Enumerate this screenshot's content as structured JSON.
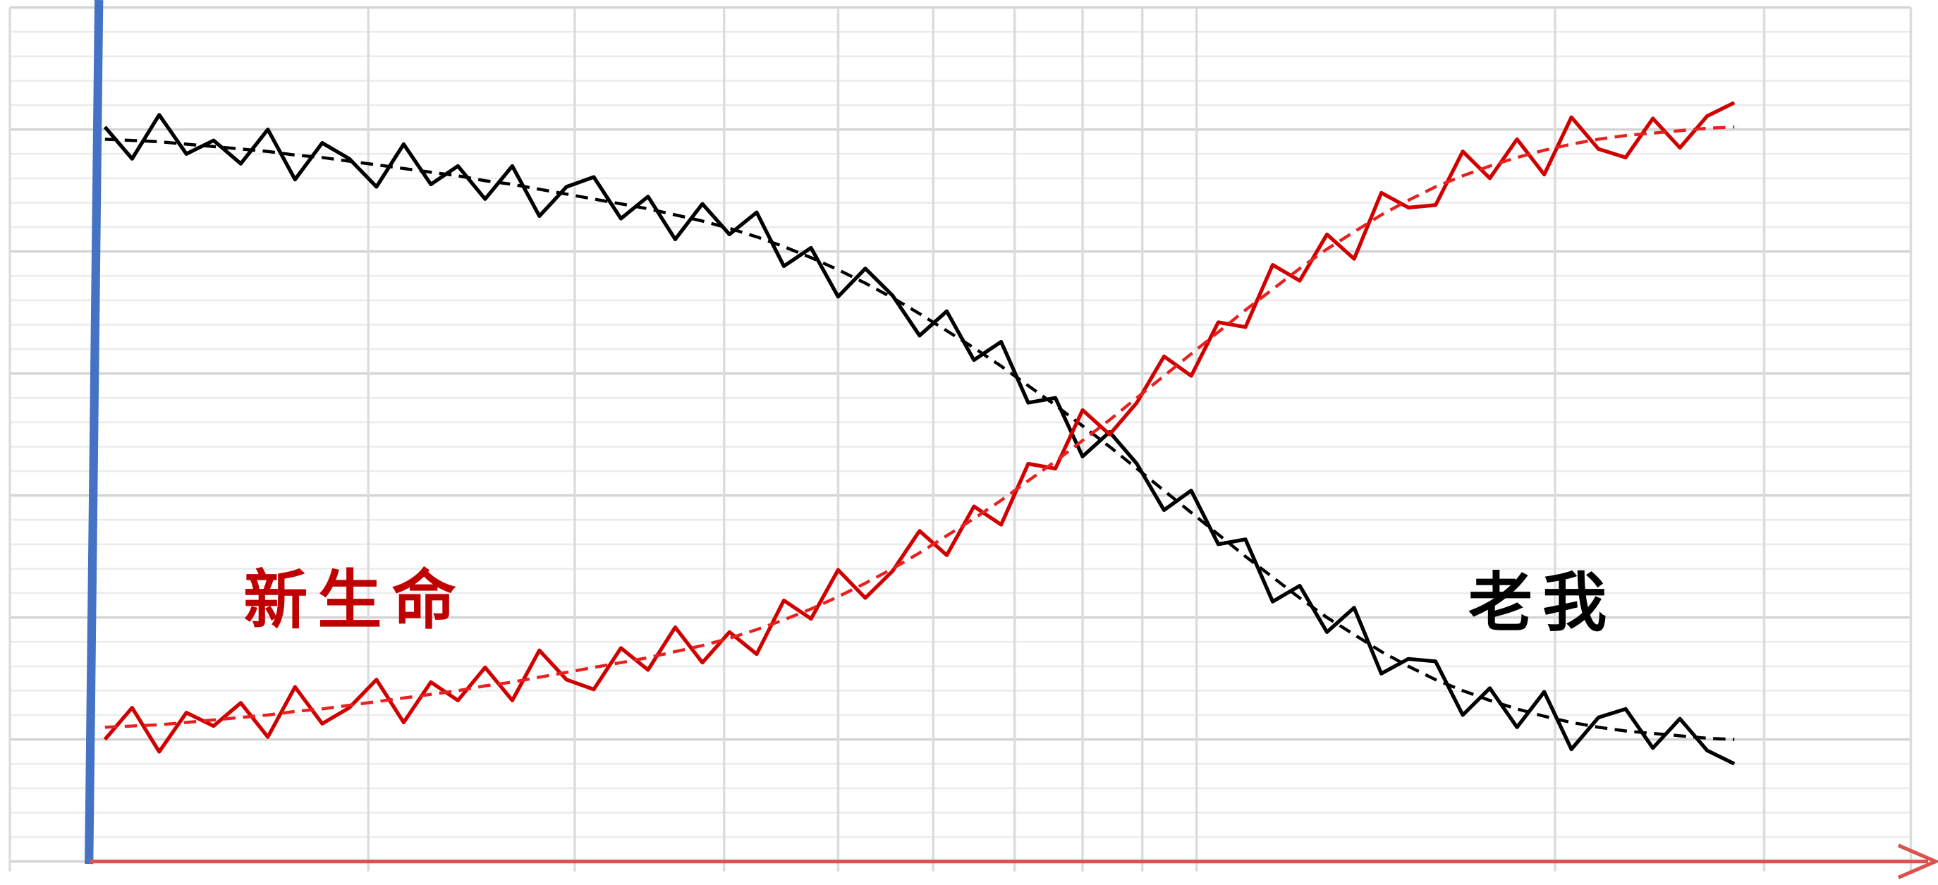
{
  "chart_data": {
    "type": "line",
    "xlim": [
      0,
      70
    ],
    "xticks": [
      0,
      13.2,
      20.8,
      26.3,
      30.5,
      34,
      37,
      39.5,
      41.7,
      43.7,
      56.9,
      64.6,
      70
    ],
    "ylim": [
      0,
      7
    ],
    "yticks": [
      0,
      1,
      2,
      3,
      4,
      5,
      6,
      7
    ],
    "minor_yticks": [
      0.2,
      0.4,
      0.6,
      0.8,
      1.2,
      1.4,
      1.6,
      1.8,
      2.2,
      2.4,
      2.6,
      2.8,
      3.2,
      3.4,
      3.6,
      3.8,
      4.2,
      4.4,
      4.6,
      4.8,
      5.2,
      5.4,
      5.6,
      5.8,
      6.2,
      6.4,
      6.6,
      6.8
    ],
    "grid": true,
    "x": [
      3.5,
      4.5,
      5.5,
      6.5,
      7.5,
      8.5,
      9.5,
      10.5,
      11.5,
      12.5,
      13.5,
      14.5,
      15.5,
      16.5,
      17.5,
      18.5,
      19.5,
      20.5,
      21.5,
      22.5,
      23.5,
      24.5,
      25.5,
      26.5,
      27.5,
      28.5,
      29.5,
      30.5,
      31.5,
      32.5,
      33.5,
      34.5,
      35.5,
      36.5,
      37.5,
      38.5,
      39.5,
      40.5,
      41.5,
      42.5,
      43.5,
      44.5,
      45.5,
      46.5,
      47.5,
      48.5,
      49.5,
      50.5,
      51.5,
      52.5,
      53.5,
      54.5,
      55.5,
      56.5,
      57.5,
      58.5,
      59.5,
      60.5,
      61.5,
      62.5,
      63.5
    ],
    "series": [
      {
        "color": "#000000",
        "dashed": false,
        "values": [
          6.02,
          5.76,
          6.12,
          5.8,
          5.91,
          5.72,
          6.0,
          5.59,
          5.89,
          5.76,
          5.53,
          5.88,
          5.55,
          5.7,
          5.43,
          5.7,
          5.29,
          5.53,
          5.61,
          5.27,
          5.45,
          5.1,
          5.39,
          5.14,
          5.32,
          4.88,
          5.03,
          4.63,
          4.86,
          4.64,
          4.31,
          4.51,
          4.11,
          4.26,
          3.76,
          3.8,
          3.32,
          3.52,
          3.26,
          2.88,
          3.04,
          2.6,
          2.64,
          2.13,
          2.26,
          1.88,
          2.08,
          1.54,
          1.66,
          1.64,
          1.2,
          1.42,
          1.1,
          1.39,
          0.92,
          1.18,
          1.25,
          0.93,
          1.17,
          0.91,
          0.8
        ]
      },
      {
        "color": "#000000",
        "dashed": true,
        "values": [
          5.92,
          5.91,
          5.9,
          5.88,
          5.86,
          5.84,
          5.82,
          5.79,
          5.77,
          5.74,
          5.71,
          5.68,
          5.65,
          5.62,
          5.58,
          5.55,
          5.51,
          5.47,
          5.43,
          5.39,
          5.35,
          5.3,
          5.25,
          5.19,
          5.12,
          5.04,
          4.95,
          4.85,
          4.74,
          4.62,
          4.49,
          4.35,
          4.21,
          4.06,
          3.9,
          3.74,
          3.57,
          3.4,
          3.22,
          3.04,
          2.86,
          2.68,
          2.5,
          2.33,
          2.16,
          2.0,
          1.86,
          1.72,
          1.6,
          1.49,
          1.4,
          1.32,
          1.25,
          1.19,
          1.14,
          1.1,
          1.07,
          1.05,
          1.03,
          1.01,
          1.0
        ]
      },
      {
        "color": "#d00000",
        "dashed": false,
        "values": [
          1.0,
          1.26,
          0.9,
          1.22,
          1.11,
          1.3,
          1.02,
          1.43,
          1.13,
          1.26,
          1.49,
          1.14,
          1.47,
          1.32,
          1.59,
          1.32,
          1.73,
          1.49,
          1.41,
          1.75,
          1.57,
          1.92,
          1.63,
          1.88,
          1.7,
          2.14,
          1.99,
          2.39,
          2.16,
          2.38,
          2.71,
          2.51,
          2.91,
          2.76,
          3.26,
          3.22,
          3.7,
          3.5,
          3.76,
          4.14,
          3.98,
          4.42,
          4.38,
          4.89,
          4.76,
          5.14,
          4.94,
          5.48,
          5.36,
          5.38,
          5.82,
          5.6,
          5.92,
          5.63,
          6.1,
          5.84,
          5.77,
          6.09,
          5.85,
          6.11,
          6.22
        ]
      },
      {
        "color": "#e82020",
        "dashed": true,
        "values": [
          1.1,
          1.11,
          1.12,
          1.14,
          1.16,
          1.18,
          1.2,
          1.23,
          1.25,
          1.28,
          1.31,
          1.34,
          1.37,
          1.4,
          1.44,
          1.47,
          1.51,
          1.55,
          1.59,
          1.63,
          1.67,
          1.72,
          1.77,
          1.83,
          1.9,
          1.98,
          2.07,
          2.17,
          2.28,
          2.4,
          2.53,
          2.67,
          2.81,
          2.96,
          3.12,
          3.28,
          3.45,
          3.62,
          3.8,
          3.98,
          4.16,
          4.34,
          4.52,
          4.69,
          4.86,
          5.02,
          5.16,
          5.3,
          5.42,
          5.53,
          5.62,
          5.7,
          5.77,
          5.83,
          5.88,
          5.92,
          5.95,
          5.97,
          5.99,
          6.01,
          6.02
        ]
      }
    ],
    "annotations": [
      {
        "text": "新生命",
        "color": "#c00000"
      },
      {
        "text": "老我",
        "color": "#000000"
      }
    ]
  }
}
